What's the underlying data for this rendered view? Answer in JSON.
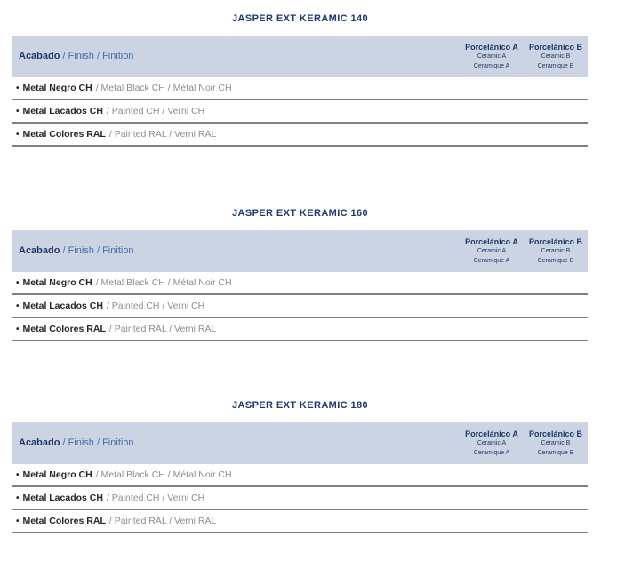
{
  "colors": {
    "title_navy": "#1c3a6b",
    "header_band_bg": "#ccd3e2",
    "secondary_blue": "#4470ab",
    "row_bold_text": "#2a2627",
    "row_secondary_text": "#8b8d90",
    "rule_grey": "#7d7f82",
    "page_bg": "#ffffff"
  },
  "shared": {
    "row_bullet": "•"
  },
  "sections": [
    {
      "title": "JASPER EXT KERAMIC 140",
      "header": {
        "finish_bold": "Acabado",
        "finish_rest": "/ Finish / Finition",
        "columns": [
          {
            "title": "Porcelánico A",
            "line2": "Ceramic A",
            "line3": "Ceramique A"
          },
          {
            "title": "Porcelánico B",
            "line2": "Ceramic B",
            "line3": "Ceramique B"
          }
        ]
      },
      "rows": [
        {
          "bold": "Metal Negro CH",
          "rest": "/ Metal Black CH / Métal Noir CH"
        },
        {
          "bold": "Metal Lacados CH",
          "rest": "/ Painted CH / Verni CH"
        },
        {
          "bold": "Metal Colores RAL",
          "rest": "/ Painted RAL / Verni RAL"
        }
      ]
    },
    {
      "title": "JASPER EXT KERAMIC 160",
      "header": {
        "finish_bold": "Acabado",
        "finish_rest": "/ Finish / Finition",
        "columns": [
          {
            "title": "Porcelánico A",
            "line2": "Ceramic A",
            "line3": "Ceramique A"
          },
          {
            "title": "Porcelánico B",
            "line2": "Ceramic B",
            "line3": "Ceramique B"
          }
        ]
      },
      "rows": [
        {
          "bold": "Metal Negro CH",
          "rest": "/ Metal Black CH / Métal Noir CH"
        },
        {
          "bold": "Metal Lacados CH",
          "rest": "/ Painted CH / Verni CH"
        },
        {
          "bold": "Metal Colores RAL",
          "rest": "/ Painted RAL / Verni RAL"
        }
      ]
    },
    {
      "title": "JASPER EXT KERAMIC 180",
      "header": {
        "finish_bold": "Acabado",
        "finish_rest": "/ Finish / Finition",
        "columns": [
          {
            "title": "Porcelánico A",
            "line2": "Ceramic A",
            "line3": "Ceramique A"
          },
          {
            "title": "Porcelánico B",
            "line2": "Ceramic B",
            "line3": "Ceramique B"
          }
        ]
      },
      "rows": [
        {
          "bold": "Metal Negro CH",
          "rest": "/ Metal Black CH / Métal Noir CH"
        },
        {
          "bold": "Metal Lacados CH",
          "rest": "/ Painted CH / Verni CH"
        },
        {
          "bold": "Metal Colores RAL",
          "rest": "/ Painted RAL / Verni RAL"
        }
      ]
    }
  ]
}
